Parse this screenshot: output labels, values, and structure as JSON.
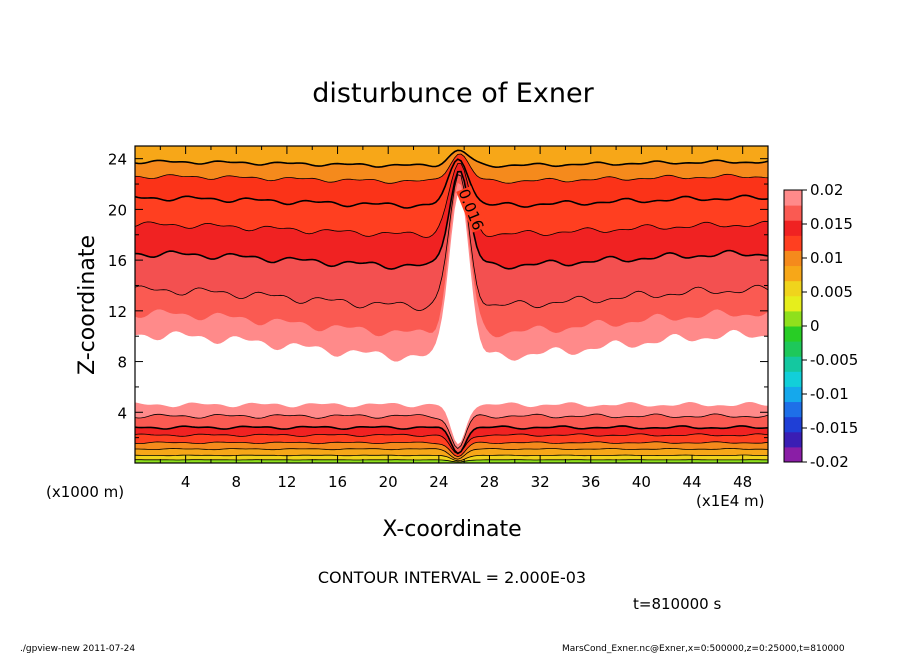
{
  "chart_data": {
    "type": "contour",
    "title": "disturbunce of Exner",
    "xlabel": "X-coordinate",
    "ylabel": "Z-coordinate",
    "x_unit_note": "(x1E4 m)",
    "y_unit_note": "(x1000 m)",
    "xlim": [
      0,
      50
    ],
    "ylim": [
      0,
      25
    ],
    "x_ticks": [
      "4",
      "8",
      "12",
      "16",
      "20",
      "24",
      "28",
      "32",
      "36",
      "40",
      "44",
      "48"
    ],
    "y_ticks": [
      "4",
      "8",
      "12",
      "16",
      "20",
      "24"
    ],
    "contour_label": "0.016",
    "contour_interval_text": "CONTOUR INTERVAL = 2.000E-03",
    "time_text": "t=810000 s",
    "colorbar": {
      "labels": [
        "0.02",
        "0.015",
        "0.01",
        "0.005",
        "0",
        "-0.005",
        "-0.01",
        "-0.015",
        "-0.02"
      ],
      "colors": [
        "#8a1ea6",
        "#3a1eb4",
        "#1f3fd6",
        "#1e6fe8",
        "#15a8ec",
        "#12cfd9",
        "#14c8a0",
        "#1ec85a",
        "#28cd25",
        "#8fe01c",
        "#e6ee1c",
        "#f0d41c",
        "#f7a718",
        "#f58a1c",
        "#ff3f20",
        "#f02222",
        "#fa5a52",
        "#ff8a8a"
      ]
    }
  },
  "footer": {
    "left": "./gpview-new   2011-07-24",
    "right": "MarsCond_Exner.nc@Exner,x=0:500000,z=0:25000,t=810000"
  }
}
